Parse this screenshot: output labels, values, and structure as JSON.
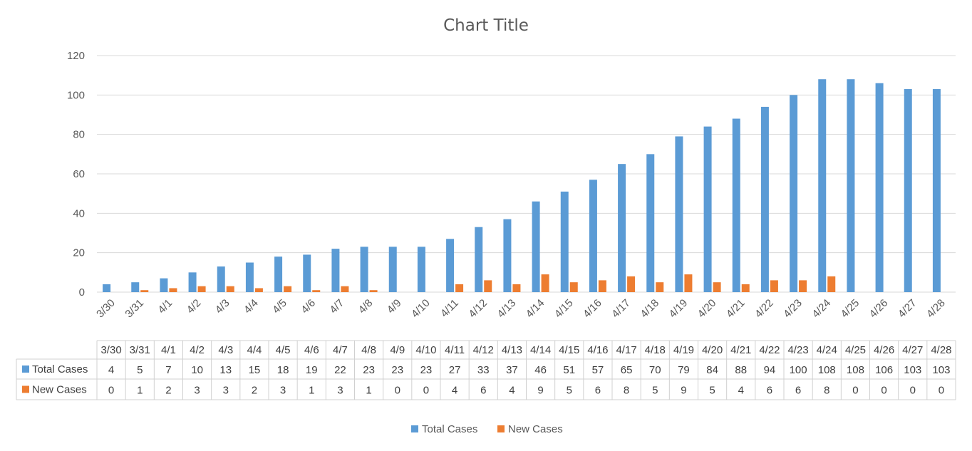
{
  "chart_data": {
    "type": "bar",
    "title": "Chart Title",
    "xlabel": "",
    "ylabel": "",
    "ylim": [
      0,
      120
    ],
    "yticks": [
      0,
      20,
      40,
      60,
      80,
      100,
      120
    ],
    "grid": true,
    "legend_position": "bottom",
    "data_table": true,
    "categories": [
      "3/30",
      "3/31",
      "4/1",
      "4/2",
      "4/3",
      "4/4",
      "4/5",
      "4/6",
      "4/7",
      "4/8",
      "4/9",
      "4/10",
      "4/11",
      "4/12",
      "4/13",
      "4/14",
      "4/15",
      "4/16",
      "4/17",
      "4/18",
      "4/19",
      "4/20",
      "4/21",
      "4/22",
      "4/23",
      "4/24",
      "4/25",
      "4/26",
      "4/27",
      "4/28"
    ],
    "series": [
      {
        "name": "Total Cases",
        "color": "#5b9bd5",
        "values": [
          4,
          5,
          7,
          10,
          13,
          15,
          18,
          19,
          22,
          23,
          23,
          23,
          27,
          33,
          37,
          46,
          51,
          57,
          65,
          70,
          79,
          84,
          88,
          94,
          100,
          108,
          108,
          106,
          103,
          103
        ]
      },
      {
        "name": "New Cases",
        "color": "#ed7d31",
        "values": [
          0,
          1,
          2,
          3,
          3,
          2,
          3,
          1,
          3,
          1,
          0,
          0,
          4,
          6,
          4,
          9,
          5,
          6,
          8,
          5,
          9,
          5,
          4,
          6,
          6,
          8,
          0,
          0,
          0,
          0
        ]
      }
    ]
  }
}
